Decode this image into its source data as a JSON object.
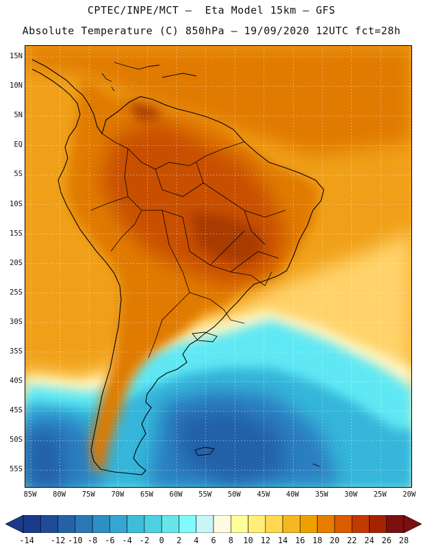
{
  "title_line1": "CPTEC/INPE/MCT –  Eta Model 15km – GFS",
  "title_line2": "Absolute Temperature (C) 850hPa – 19/09/2020 12UTC fct=28h",
  "lat_labels": [
    "15N",
    "10N",
    "5N",
    "EQ",
    "5S",
    "10S",
    "15S",
    "20S",
    "25S",
    "30S",
    "35S",
    "40S",
    "45S",
    "50S",
    "55S"
  ],
  "lon_labels": [
    "85W",
    "80W",
    "75W",
    "70W",
    "65W",
    "60W",
    "55W",
    "50W",
    "45W",
    "40W",
    "35W",
    "30W",
    "25W",
    "20W"
  ],
  "colorbar": {
    "labels": [
      "-14",
      "-12",
      "-10",
      "-8",
      "-6",
      "-4",
      "-2",
      "0",
      "2",
      "4",
      "6",
      "8",
      "10",
      "12",
      "14",
      "16",
      "18",
      "20",
      "22",
      "24",
      "26",
      "28"
    ],
    "colors": [
      "#1b3a8a",
      "#1f4c99",
      "#2563a8",
      "#2a79b6",
      "#2e8fc4",
      "#35a7d1",
      "#3fbcd9",
      "#4dd1e2",
      "#66e6ea",
      "#80fafa",
      "#c8f5f8",
      "#fffbe0",
      "#ffff99",
      "#ffee77",
      "#ffd850",
      "#f5b820",
      "#efa000",
      "#e87c00",
      "#d95c00",
      "#c23a00",
      "#a52200",
      "#7a1010"
    ]
  },
  "map": {
    "ocean_warm": "#f0a018",
    "ocean_hot": "#e07a00",
    "land_hot": "#c85000",
    "land_hottest": "#a83a00",
    "yellow_band": "#ffd36a",
    "pale_band": "#fff6c4",
    "cyan_band": "#5fe8f4",
    "mid_blue": "#35b6da",
    "deep_blue": "#2a7ec0",
    "darkest_blue": "#2460a8",
    "coast": "#000000"
  }
}
